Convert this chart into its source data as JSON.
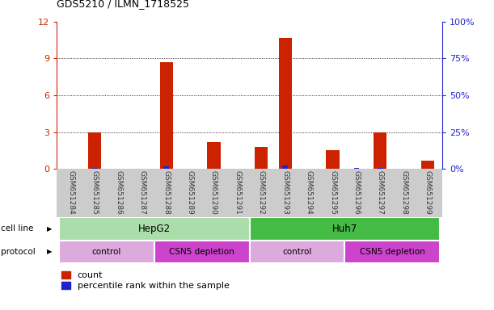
{
  "title": "GDS5210 / ILMN_1718525",
  "samples": [
    "GSM651284",
    "GSM651285",
    "GSM651286",
    "GSM651287",
    "GSM651288",
    "GSM651289",
    "GSM651290",
    "GSM651291",
    "GSM651292",
    "GSM651293",
    "GSM651294",
    "GSM651295",
    "GSM651296",
    "GSM651297",
    "GSM651298",
    "GSM651299"
  ],
  "count_values": [
    0,
    3.0,
    0,
    0,
    8.7,
    0,
    2.2,
    0,
    1.8,
    10.7,
    0,
    1.5,
    0,
    3.0,
    0,
    0.7
  ],
  "percentile_values": [
    0,
    0.5,
    0,
    0,
    2.0,
    0,
    0.4,
    0,
    0.3,
    2.5,
    0,
    0.2,
    0.6,
    0.5,
    0,
    0.2
  ],
  "ylim_left": [
    0,
    12
  ],
  "ylim_right": [
    0,
    100
  ],
  "yticks_left": [
    0,
    3,
    6,
    9,
    12
  ],
  "yticks_right": [
    0,
    25,
    50,
    75,
    100
  ],
  "ytick_labels_right": [
    "0%",
    "25%",
    "50%",
    "75%",
    "100%"
  ],
  "count_color": "#cc2200",
  "percentile_color": "#2222cc",
  "bar_width": 0.55,
  "bg_color": "#ffffff",
  "cell_line_groups": [
    {
      "label": "HepG2",
      "start": 0,
      "end": 7,
      "color": "#aaddaa"
    },
    {
      "label": "Huh7",
      "start": 8,
      "end": 15,
      "color": "#44bb44"
    }
  ],
  "protocol_groups": [
    {
      "label": "control",
      "start": 0,
      "end": 3,
      "color": "#ddaadd"
    },
    {
      "label": "CSN5 depletion",
      "start": 4,
      "end": 7,
      "color": "#cc44cc"
    },
    {
      "label": "control",
      "start": 8,
      "end": 11,
      "color": "#ddaadd"
    },
    {
      "label": "CSN5 depletion",
      "start": 12,
      "end": 15,
      "color": "#cc44cc"
    }
  ],
  "tick_label_color": "#555555",
  "left_axis_color": "#cc2200",
  "right_axis_color": "#2222cc",
  "cell_line_label": "cell line",
  "protocol_label": "protocol",
  "legend_count": "count",
  "legend_percentile": "percentile rank within the sample"
}
